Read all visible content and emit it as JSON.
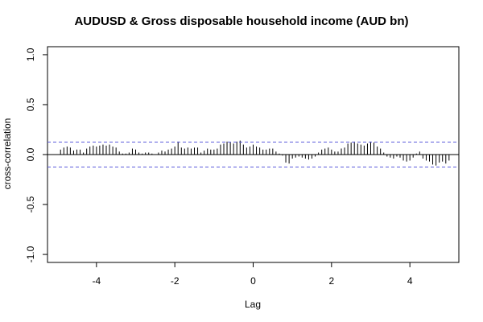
{
  "chart_data": {
    "type": "bar",
    "title": "AUDUSD & Gross disposable household income (AUD bn)",
    "xlabel": "Lag",
    "ylabel": "cross-correlation",
    "xlim": [
      -5.25,
      5.25
    ],
    "ylim": [
      -1.08,
      1.08
    ],
    "x_ticks": [
      -4,
      -2,
      0,
      2,
      4
    ],
    "y_ticks": [
      -1.0,
      -0.5,
      0.0,
      0.5,
      1.0
    ],
    "x_tick_labels": [
      "-4",
      "-2",
      "0",
      "2",
      "4"
    ],
    "y_tick_labels": [
      "-1.0",
      "-0.5",
      "0.0",
      "0.5",
      "1.0"
    ],
    "confidence_bound": 0.125,
    "confidence_color": "#5b5bdc",
    "bar_color": "#000000",
    "lag_step": 0.0833,
    "x": [
      -4.917,
      -4.833,
      -4.75,
      -4.667,
      -4.583,
      -4.5,
      -4.417,
      -4.333,
      -4.25,
      -4.167,
      -4.083,
      -4.0,
      -3.917,
      -3.833,
      -3.75,
      -3.667,
      -3.583,
      -3.5,
      -3.417,
      -3.333,
      -3.25,
      -3.167,
      -3.083,
      -3.0,
      -2.917,
      -2.833,
      -2.75,
      -2.667,
      -2.583,
      -2.5,
      -2.417,
      -2.333,
      -2.25,
      -2.167,
      -2.083,
      -2.0,
      -1.917,
      -1.833,
      -1.75,
      -1.667,
      -1.583,
      -1.5,
      -1.417,
      -1.333,
      -1.25,
      -1.167,
      -1.083,
      -1.0,
      -0.917,
      -0.833,
      -0.75,
      -0.667,
      -0.583,
      -0.5,
      -0.417,
      -0.333,
      -0.25,
      -0.167,
      -0.083,
      0.0,
      0.083,
      0.167,
      0.25,
      0.333,
      0.417,
      0.5,
      0.583,
      0.667,
      0.75,
      0.833,
      0.917,
      1.0,
      1.083,
      1.167,
      1.25,
      1.333,
      1.417,
      1.5,
      1.583,
      1.667,
      1.75,
      1.833,
      1.917,
      2.0,
      2.083,
      2.167,
      2.25,
      2.333,
      2.417,
      2.5,
      2.583,
      2.667,
      2.75,
      2.833,
      2.917,
      3.0,
      3.083,
      3.167,
      3.25,
      3.333,
      3.417,
      3.5,
      3.583,
      3.667,
      3.75,
      3.833,
      3.917,
      4.0,
      4.083,
      4.167,
      4.25,
      4.333,
      4.417,
      4.5,
      4.583,
      4.667,
      4.75,
      4.833,
      4.917,
      5.0
    ],
    "values": [
      0.05,
      0.07,
      0.08,
      0.07,
      0.04,
      0.05,
      0.05,
      0.02,
      0.06,
      0.08,
      0.09,
      0.08,
      0.09,
      0.1,
      0.09,
      0.1,
      0.08,
      0.07,
      0.03,
      0.01,
      0.01,
      0.02,
      0.06,
      0.05,
      0.02,
      0.01,
      0.02,
      0.02,
      0.01,
      0.0,
      0.02,
      0.04,
      0.03,
      0.05,
      0.06,
      0.08,
      0.13,
      0.07,
      0.06,
      0.07,
      0.06,
      0.07,
      0.07,
      0.02,
      0.04,
      0.06,
      0.05,
      0.05,
      0.06,
      0.1,
      0.11,
      0.13,
      0.12,
      0.11,
      0.13,
      0.14,
      0.1,
      0.07,
      0.08,
      0.1,
      0.08,
      0.07,
      0.05,
      0.05,
      0.06,
      0.06,
      0.03,
      0.01,
      -0.01,
      -0.08,
      -0.09,
      -0.04,
      -0.03,
      -0.02,
      -0.03,
      -0.04,
      -0.05,
      -0.04,
      -0.02,
      0.02,
      0.05,
      0.06,
      0.07,
      0.05,
      0.03,
      0.03,
      0.06,
      0.07,
      0.11,
      0.12,
      0.13,
      0.11,
      0.1,
      0.09,
      0.11,
      0.13,
      0.12,
      0.08,
      0.06,
      0.02,
      -0.02,
      -0.03,
      -0.04,
      -0.02,
      -0.03,
      -0.06,
      -0.07,
      -0.06,
      -0.03,
      0.01,
      0.03,
      -0.04,
      -0.06,
      -0.07,
      -0.1,
      -0.11,
      -0.08,
      -0.07,
      -0.09,
      -0.06
    ]
  }
}
